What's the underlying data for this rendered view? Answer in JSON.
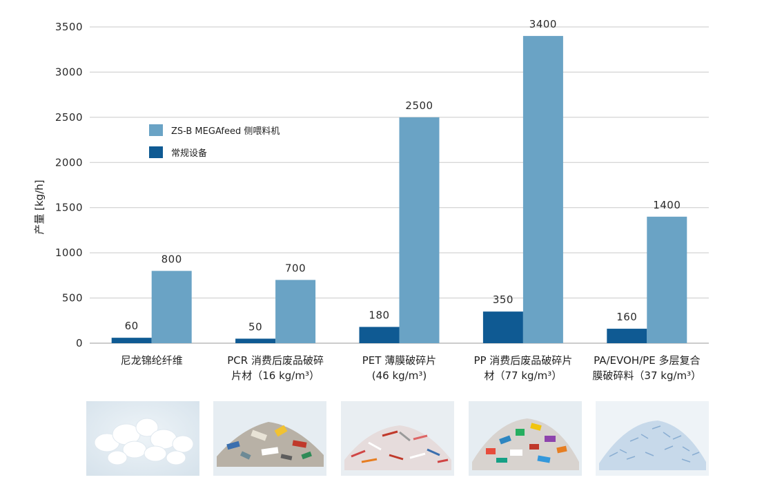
{
  "chart_data": {
    "type": "bar",
    "ylabel": "产量 [kg/h]",
    "ylim": [
      0,
      3500
    ],
    "yticks": [
      0,
      500,
      1000,
      1500,
      2000,
      2500,
      3000,
      3500
    ],
    "grid": true,
    "legend_position": "upper-left",
    "categories": [
      [
        "尼龙锦纶纤维"
      ],
      [
        "PCR 消费后废品破碎",
        "片材（16 kg/m³）"
      ],
      [
        "PET 薄膜破碎片",
        "(46 kg/m³)"
      ],
      [
        "PP 消费后废品破碎片",
        "材（77 kg/m³）"
      ],
      [
        "PA/EVOH/PE 多层复合",
        "膜破碎料（37 kg/m³）"
      ]
    ],
    "series": [
      {
        "name": "常规设备",
        "color": "#0f5a93",
        "values": [
          60,
          50,
          180,
          350,
          160
        ]
      },
      {
        "name": "ZS-B MEGAfeed 侧喂料机",
        "color": "#6aa3c5",
        "values": [
          800,
          700,
          2500,
          3400,
          1400
        ]
      }
    ],
    "value_labels": [
      [
        "60",
        "50",
        "180",
        "350",
        "160"
      ],
      [
        "800",
        "700",
        "2500",
        "3400",
        "1400"
      ]
    ],
    "legend_order": [
      1,
      0
    ]
  }
}
